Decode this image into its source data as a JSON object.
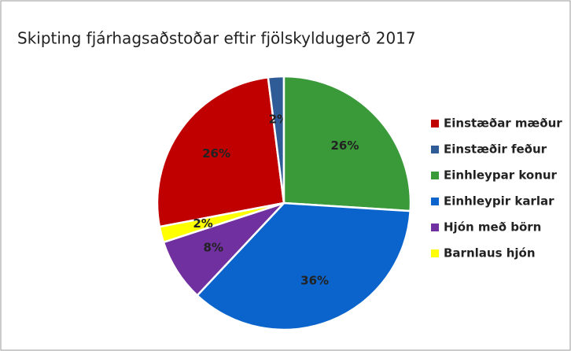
{
  "chart_data": {
    "type": "pie",
    "title": "Skipting fjárhagsaðstoðar eftir fjölskyldugerð 2017",
    "categories": [
      "Einstæðar mæður",
      "Einstæðir feður",
      "Einhleypar konur",
      "Einhleypir karlar",
      "Hjón með börn",
      "Barnlaus hjón"
    ],
    "values": [
      26,
      2,
      26,
      36,
      8,
      2
    ],
    "value_labels": [
      "26%",
      "2%",
      "26%",
      "36%",
      "8%",
      "2%"
    ],
    "colors": [
      "#c00000",
      "#2f5b96",
      "#3a9a3a",
      "#0a64cc",
      "#7030a0",
      "#ffff00"
    ],
    "legend": "right"
  }
}
